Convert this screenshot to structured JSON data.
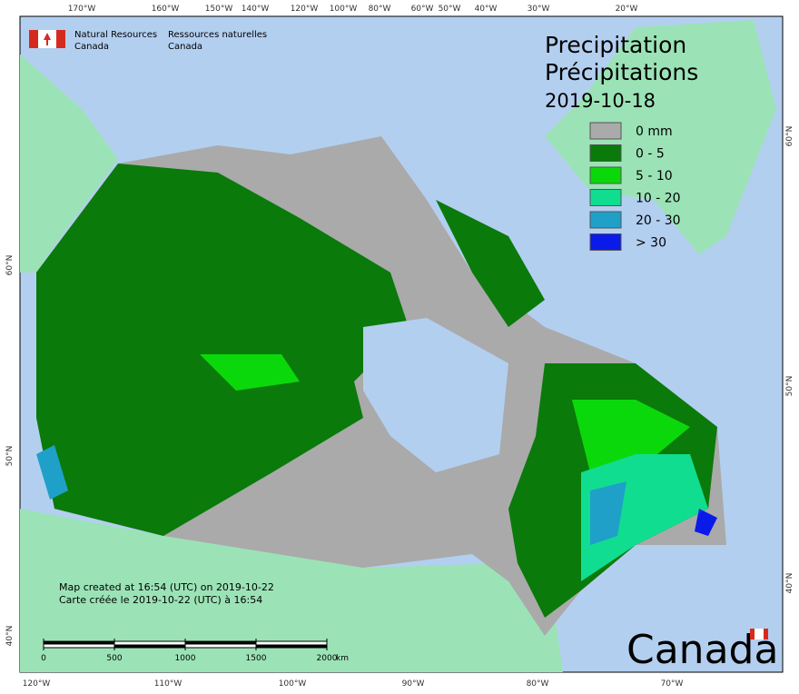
{
  "header": {
    "agency_en": [
      "Natural Resources",
      "Canada"
    ],
    "agency_fr": [
      "Ressources naturelles",
      "Canada"
    ]
  },
  "title": [
    "Precipitation",
    "Précipitations"
  ],
  "date": "2019-10-18",
  "legend": [
    {
      "label": "0 mm",
      "color": "#aaaaaa"
    },
    {
      "label": "0 - 5",
      "color": "#0a7a0a"
    },
    {
      "label": "5 - 10",
      "color": "#0bd80b"
    },
    {
      "label": "10 - 20",
      "color": "#10dd90"
    },
    {
      "label": "20 - 30",
      "color": "#1fa0c8"
    },
    {
      "label": "> 30",
      "color": "#0a1ae8"
    }
  ],
  "graticule": {
    "top": [
      "170°W",
      "160°W",
      "150°W",
      "140°W",
      "120°W",
      "100°W",
      "80°W",
      "60°W",
      "50°W",
      "40°W",
      "30°W",
      "20°W"
    ],
    "bottom": [
      "120°W",
      "110°W",
      "100°W",
      "90°W",
      "80°W",
      "70°W"
    ],
    "left": [
      "60°N",
      "50°N",
      "40°N"
    ],
    "right": [
      "60°N",
      "50°N",
      "40°N"
    ]
  },
  "credit": [
    "Map created at 16:54 (UTC) on 2019-10-22",
    "Carte créée le 2019-10-22 (UTC) à 16:54"
  ],
  "scale": {
    "ticks": [
      "0",
      "500",
      "1000",
      "1500",
      "2000"
    ],
    "unit": "km"
  },
  "wordmark": "Canada"
}
